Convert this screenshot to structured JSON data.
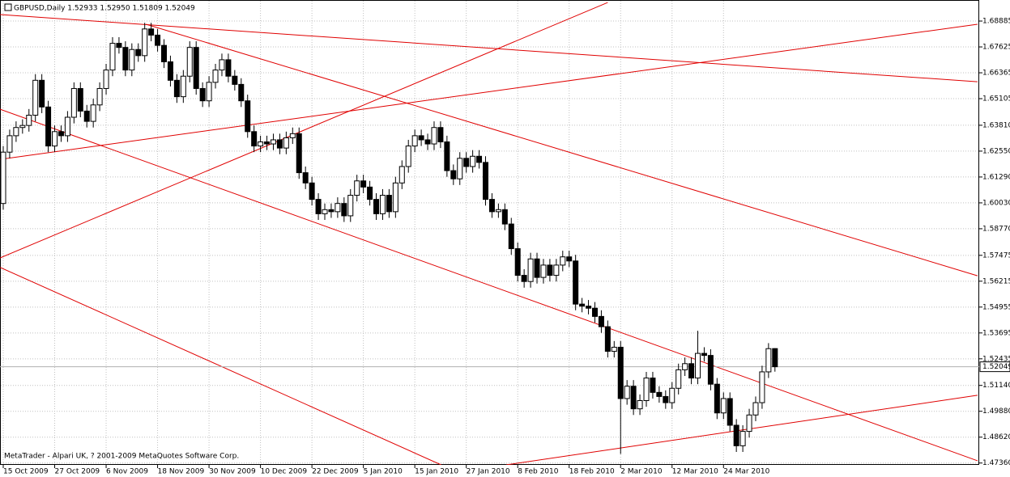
{
  "chart_data": {
    "type": "candlestick",
    "title": "GBPUSD,Daily  1.52933 1.52950 1.51809 1.52049",
    "annotation": "MetaTrader - Alpari UK, ? 2001-2009 MetaQuotes Software Corp.",
    "categories": [
      "15 Oct 2009",
      null,
      null,
      null,
      null,
      null,
      null,
      null,
      "27 Oct 2009",
      null,
      null,
      null,
      null,
      null,
      null,
      null,
      "6 Nov 2009",
      null,
      null,
      null,
      null,
      null,
      null,
      null,
      "18 Nov 2009",
      null,
      null,
      null,
      null,
      null,
      null,
      null,
      "30 Nov 2009",
      null,
      null,
      null,
      null,
      null,
      null,
      null,
      "10 Dec 2009",
      null,
      null,
      null,
      null,
      null,
      null,
      null,
      "22 Dec 2009",
      null,
      null,
      null,
      null,
      null,
      null,
      null,
      "5 Jan 2010",
      null,
      null,
      null,
      null,
      null,
      null,
      null,
      "15 Jan 2010",
      null,
      null,
      null,
      null,
      null,
      null,
      null,
      "27 Jan 2010",
      null,
      null,
      null,
      null,
      null,
      null,
      null,
      "8 Feb 2010",
      null,
      null,
      null,
      null,
      null,
      null,
      null,
      "18 Feb 2010",
      null,
      null,
      null,
      null,
      null,
      null,
      null,
      "2 Mar 2010",
      null,
      null,
      null,
      null,
      null,
      null,
      null,
      "12 Mar 2010",
      null,
      null,
      null,
      null,
      null,
      null,
      null,
      "24 Mar 2010",
      null,
      null,
      null,
      null,
      null,
      null,
      null,
      null
    ],
    "open": [
      1.6,
      1.625,
      1.633,
      1.637,
      1.638,
      1.643,
      1.66,
      1.647,
      1.628,
      1.635,
      1.633,
      1.642,
      1.656,
      1.645,
      1.64,
      1.648,
      1.656,
      1.665,
      1.678,
      1.676,
      1.665,
      1.675,
      1.672,
      1.685,
      1.682,
      1.677,
      1.669,
      1.66,
      1.652,
      1.662,
      1.676,
      1.656,
      1.65,
      1.659,
      1.665,
      1.67,
      1.662,
      1.658,
      1.65,
      1.635,
      1.628,
      1.63,
      1.629,
      1.631,
      1.627,
      1.632,
      1.634,
      1.615,
      1.61,
      1.602,
      1.595,
      1.597,
      1.596,
      1.6,
      1.594,
      1.604,
      1.611,
      1.608,
      1.602,
      1.595,
      1.604,
      1.596,
      1.61,
      1.618,
      1.628,
      1.633,
      1.631,
      1.629,
      1.637,
      1.63,
      1.616,
      1.612,
      1.622,
      1.618,
      1.623,
      1.62,
      1.602,
      1.596,
      1.597,
      1.59,
      1.578,
      1.565,
      1.562,
      1.573,
      1.564,
      1.57,
      1.565,
      1.57,
      1.574,
      1.572,
      1.551,
      1.55,
      1.549,
      1.545,
      1.54,
      1.528,
      1.53,
      1.505,
      1.511,
      1.5,
      1.504,
      1.515,
      1.508,
      1.506,
      1.503,
      1.51,
      1.519,
      1.522,
      1.515,
      1.527,
      1.526,
      1.512,
      1.498,
      1.505,
      1.492,
      1.482,
      1.489,
      1.497,
      1.503,
      1.518,
      1.52933
    ],
    "high": [
      1.628,
      1.636,
      1.64,
      1.641,
      1.646,
      1.663,
      1.663,
      1.65,
      1.638,
      1.638,
      1.645,
      1.659,
      1.659,
      1.648,
      1.651,
      1.659,
      1.668,
      1.681,
      1.681,
      1.679,
      1.678,
      1.678,
      1.688,
      1.688,
      1.685,
      1.68,
      1.672,
      1.663,
      1.665,
      1.679,
      1.679,
      1.659,
      1.662,
      1.668,
      1.673,
      1.673,
      1.665,
      1.661,
      1.653,
      1.638,
      1.633,
      1.633,
      1.634,
      1.634,
      1.635,
      1.637,
      1.637,
      1.618,
      1.613,
      1.605,
      1.6,
      1.6,
      1.603,
      1.603,
      1.607,
      1.614,
      1.614,
      1.611,
      1.605,
      1.607,
      1.607,
      1.613,
      1.621,
      1.631,
      1.636,
      1.636,
      1.634,
      1.64,
      1.64,
      1.633,
      1.619,
      1.625,
      1.625,
      1.626,
      1.626,
      1.623,
      1.605,
      1.6,
      1.6,
      1.593,
      1.581,
      1.568,
      1.576,
      1.576,
      1.573,
      1.573,
      1.573,
      1.577,
      1.577,
      1.575,
      1.554,
      1.553,
      1.552,
      1.548,
      1.543,
      1.533,
      1.533,
      1.514,
      1.514,
      1.507,
      1.518,
      1.518,
      1.511,
      1.509,
      1.513,
      1.522,
      1.525,
      1.525,
      1.538,
      1.53,
      1.529,
      1.515,
      1.508,
      1.508,
      1.495,
      1.492,
      1.5,
      1.506,
      1.521,
      1.532,
      1.5295
    ],
    "low": [
      1.597,
      1.622,
      1.63,
      1.634,
      1.635,
      1.64,
      1.644,
      1.625,
      1.625,
      1.63,
      1.63,
      1.639,
      1.642,
      1.637,
      1.637,
      1.645,
      1.653,
      1.662,
      1.673,
      1.662,
      1.662,
      1.669,
      1.669,
      1.679,
      1.674,
      1.666,
      1.657,
      1.649,
      1.649,
      1.659,
      1.653,
      1.647,
      1.647,
      1.656,
      1.662,
      1.659,
      1.655,
      1.647,
      1.632,
      1.625,
      1.625,
      1.626,
      1.626,
      1.624,
      1.624,
      1.629,
      1.612,
      1.607,
      1.599,
      1.592,
      1.592,
      1.593,
      1.593,
      1.591,
      1.591,
      1.601,
      1.605,
      1.599,
      1.592,
      1.592,
      1.593,
      1.593,
      1.607,
      1.615,
      1.625,
      1.628,
      1.626,
      1.626,
      1.627,
      1.613,
      1.609,
      1.609,
      1.615,
      1.615,
      1.617,
      1.599,
      1.593,
      1.593,
      1.587,
      1.575,
      1.562,
      1.559,
      1.559,
      1.561,
      1.561,
      1.562,
      1.562,
      1.567,
      1.569,
      1.548,
      1.547,
      1.546,
      1.542,
      1.537,
      1.525,
      1.525,
      1.478,
      1.502,
      1.497,
      1.497,
      1.501,
      1.505,
      1.503,
      1.5,
      1.5,
      1.507,
      1.516,
      1.512,
      1.512,
      1.523,
      1.509,
      1.495,
      1.495,
      1.489,
      1.479,
      1.479,
      1.486,
      1.494,
      1.5,
      1.515,
      1.51809
    ],
    "close": [
      1.625,
      1.633,
      1.637,
      1.638,
      1.643,
      1.66,
      1.647,
      1.628,
      1.635,
      1.633,
      1.642,
      1.656,
      1.645,
      1.64,
      1.648,
      1.656,
      1.665,
      1.678,
      1.676,
      1.665,
      1.675,
      1.672,
      1.685,
      1.682,
      1.677,
      1.669,
      1.66,
      1.652,
      1.662,
      1.676,
      1.656,
      1.65,
      1.659,
      1.665,
      1.67,
      1.662,
      1.658,
      1.65,
      1.635,
      1.628,
      1.63,
      1.629,
      1.631,
      1.627,
      1.632,
      1.634,
      1.615,
      1.61,
      1.602,
      1.595,
      1.597,
      1.596,
      1.6,
      1.594,
      1.604,
      1.611,
      1.608,
      1.602,
      1.595,
      1.604,
      1.596,
      1.61,
      1.618,
      1.628,
      1.633,
      1.631,
      1.629,
      1.637,
      1.63,
      1.616,
      1.612,
      1.622,
      1.618,
      1.623,
      1.62,
      1.602,
      1.596,
      1.597,
      1.59,
      1.578,
      1.565,
      1.562,
      1.573,
      1.564,
      1.57,
      1.565,
      1.57,
      1.574,
      1.572,
      1.551,
      1.55,
      1.549,
      1.545,
      1.54,
      1.528,
      1.53,
      1.505,
      1.511,
      1.5,
      1.504,
      1.515,
      1.508,
      1.506,
      1.503,
      1.51,
      1.519,
      1.522,
      1.515,
      1.527,
      1.526,
      1.512,
      1.498,
      1.505,
      1.492,
      1.482,
      1.489,
      1.497,
      1.503,
      1.518,
      1.5293,
      1.52049
    ],
    "up_color": "#ffffff",
    "down_color": "#000000",
    "line_color": "#000000",
    "last_price": {
      "value": 1.52049,
      "label": "1.52049"
    },
    "trendline_color": "#e00000",
    "trendlines": [
      [
        -0.5,
        1.692,
        151.5,
        1.6593
      ],
      [
        -0.5,
        1.6215,
        151.5,
        1.6873
      ],
      [
        -0.5,
        1.5735,
        94,
        1.6979
      ],
      [
        -0.5,
        1.6459,
        151.5,
        1.4747
      ],
      [
        22.2,
        1.6873,
        151.5,
        1.5648
      ],
      [
        -0.5,
        1.5689,
        68.1,
        1.4727
      ],
      [
        78.2,
        1.4727,
        151.5,
        1.5066
      ]
    ],
    "ylim": [
      1.4727,
      1.6991
    ],
    "yticks": [
      {
        "value": 1.68885,
        "label": "1.68885"
      },
      {
        "value": 1.67625,
        "label": "1.67625"
      },
      {
        "value": 1.66365,
        "label": "1.66365"
      },
      {
        "value": 1.65105,
        "label": "1.65105"
      },
      {
        "value": 1.6381,
        "label": "1.63810"
      },
      {
        "value": 1.6255,
        "label": "1.62550"
      },
      {
        "value": 1.6129,
        "label": "1.61290"
      },
      {
        "value": 1.6003,
        "label": "1.60030"
      },
      {
        "value": 1.5877,
        "label": "1.58770"
      },
      {
        "value": 1.57475,
        "label": "1.57475"
      },
      {
        "value": 1.56215,
        "label": "1.56215"
      },
      {
        "value": 1.54955,
        "label": "1.54955"
      },
      {
        "value": 1.53695,
        "label": "1.53695"
      },
      {
        "value": 1.52435,
        "label": "1.52435"
      },
      {
        "value": 1.5114,
        "label": "1.51140"
      },
      {
        "value": 1.4988,
        "label": "1.49880"
      },
      {
        "value": 1.4862,
        "label": "1.48620"
      },
      {
        "value": 1.4736,
        "label": "1.47360"
      }
    ],
    "grid": true
  }
}
